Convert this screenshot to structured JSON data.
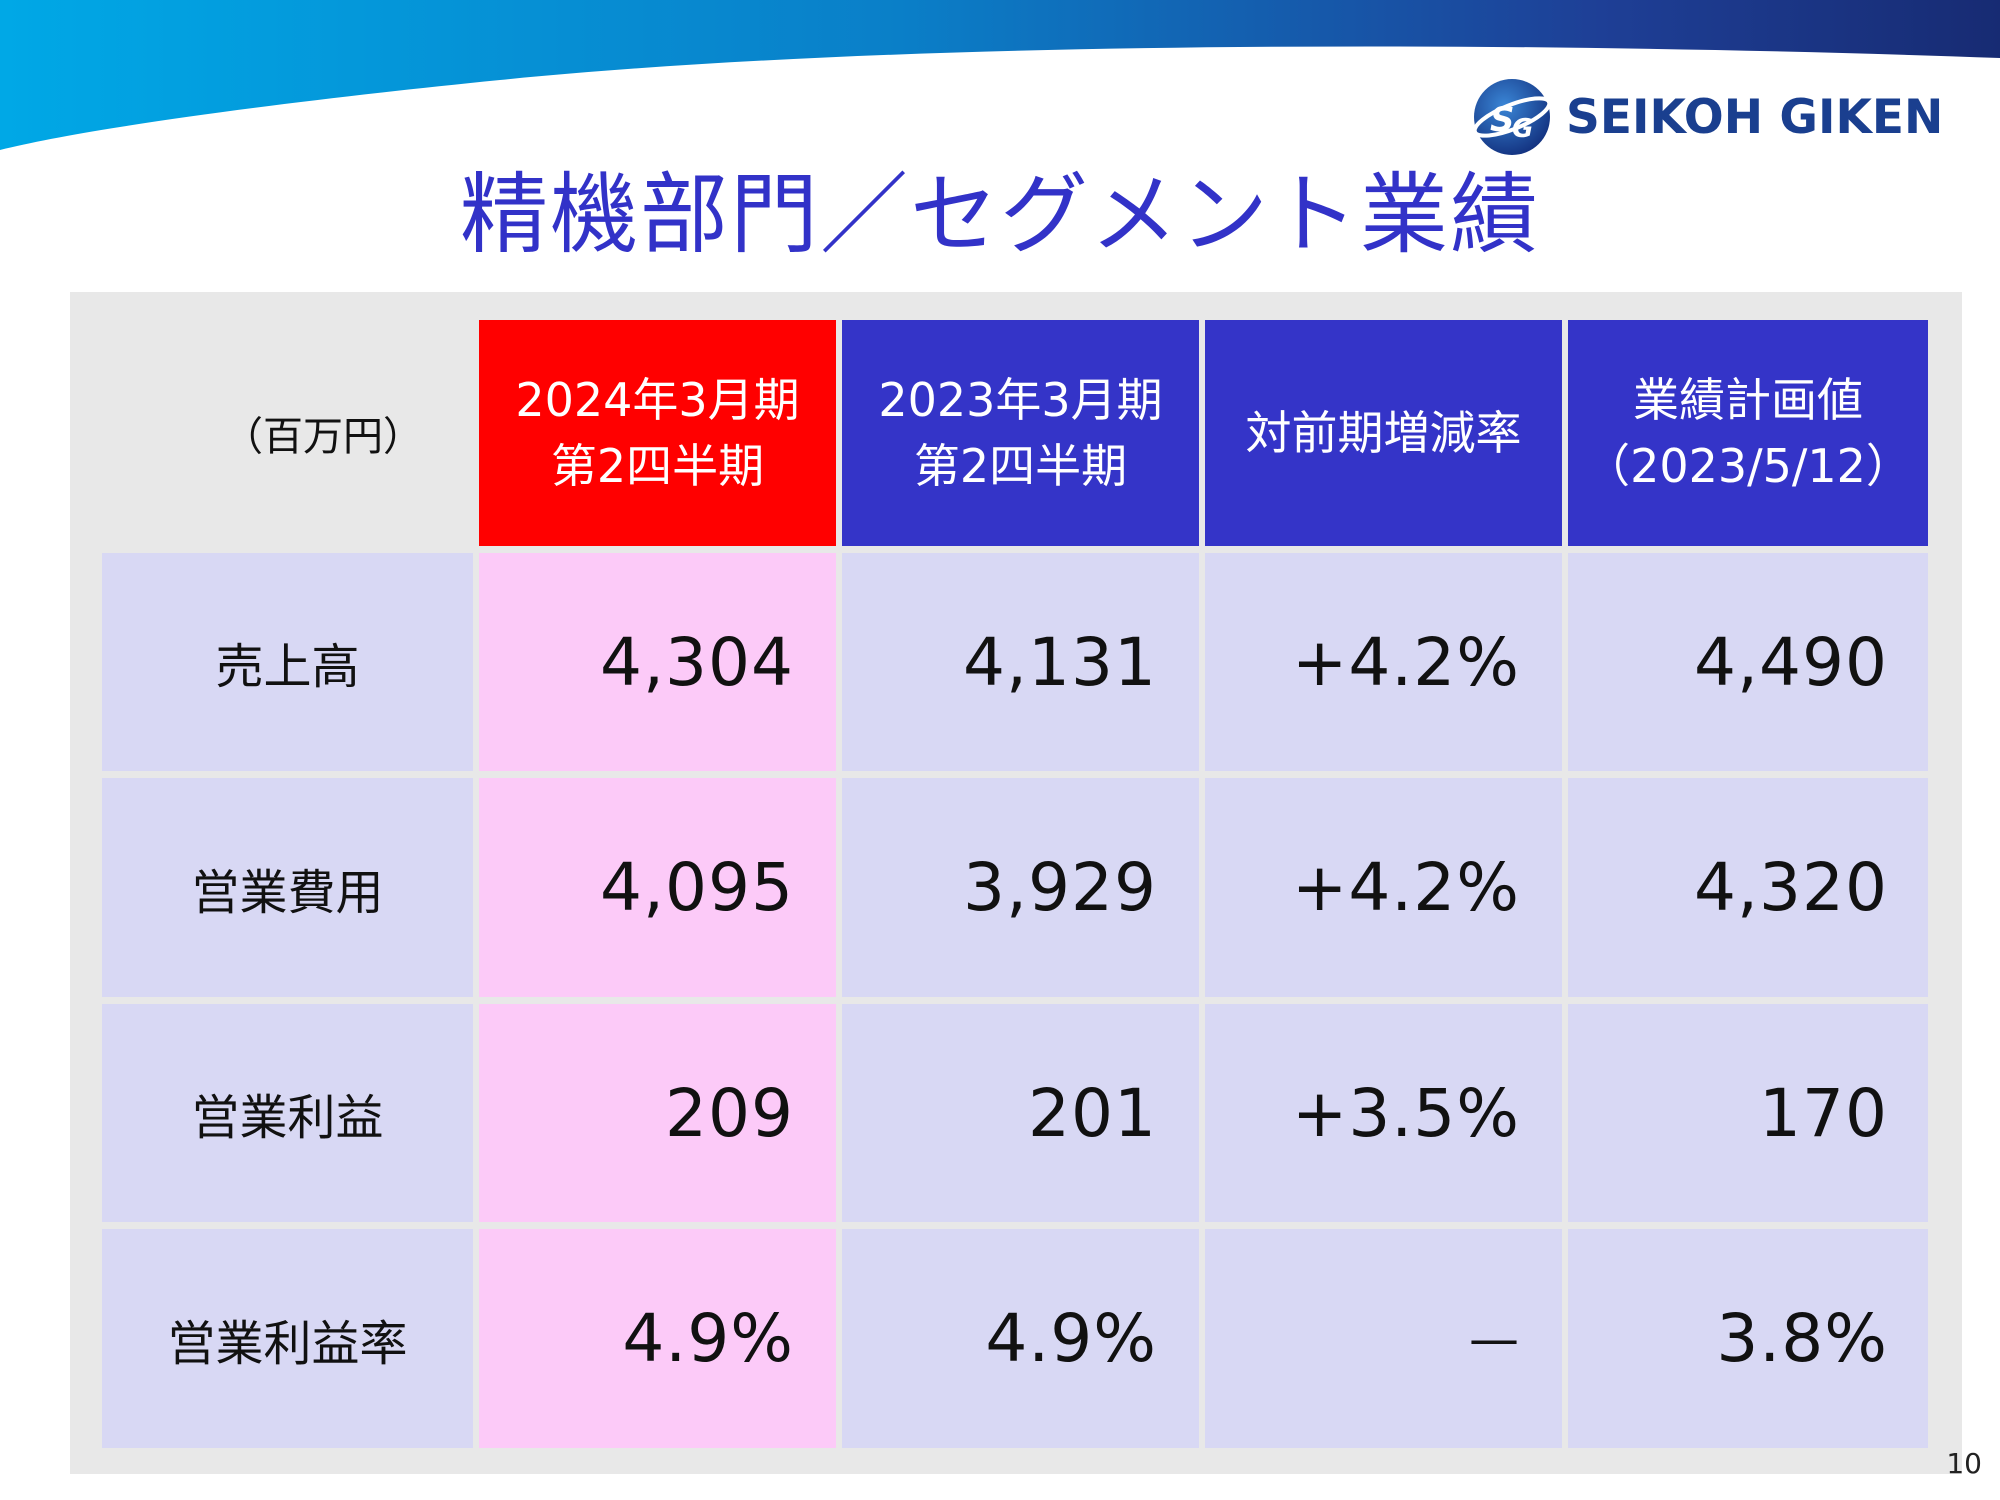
{
  "header": {
    "logo_text": "SEIKOH GIKEN",
    "title": "精機部門／セグメント業績"
  },
  "colors": {
    "title": "#3232c8",
    "current_header": "#ff0000",
    "other_header": "#3434c8",
    "current_cells": "#fccaf8",
    "other_cells": "#d8d8f4",
    "panel": "#e8e8e8",
    "logo_text": "#1a3f8f"
  },
  "table": {
    "unit_label": "（百万円）",
    "columns": [
      {
        "line1": "2024年3月期",
        "line2": "第2四半期"
      },
      {
        "line1": "2023年3月期",
        "line2": "第2四半期"
      },
      {
        "line1": "対前期増減率",
        "line2": ""
      },
      {
        "line1": "業績計画値",
        "line2": "（2023/5/12）"
      }
    ],
    "rows": [
      {
        "label": "売上高",
        "values": [
          "4,304",
          "4,131",
          "+4.2%",
          "4,490"
        ]
      },
      {
        "label": "営業費用",
        "values": [
          "4,095",
          "3,929",
          "+4.2%",
          "4,320"
        ]
      },
      {
        "label": "営業利益",
        "values": [
          "209",
          "201",
          "+3.5%",
          "170"
        ]
      },
      {
        "label": "営業利益率",
        "values": [
          "4.9%",
          "4.9%",
          "—",
          "3.8%"
        ]
      }
    ]
  },
  "footer": {
    "page_number": "10"
  }
}
